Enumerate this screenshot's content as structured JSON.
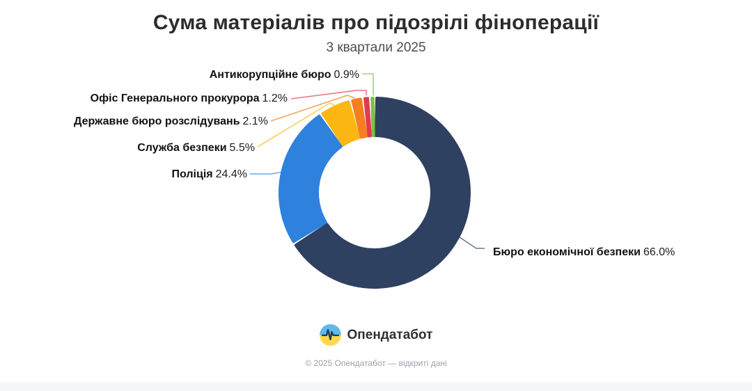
{
  "chart_data": {
    "type": "pie",
    "donut": true,
    "title": "Сума матеріалів про підозрілі фіноперації",
    "subtitle": "3 квартали 2025",
    "unit": "%",
    "order": "clockwise-from-12-oclock",
    "legend": "callout labels with leader lines",
    "background": "#ffffff",
    "slices": [
      {
        "name": "Бюро економічної безпеки",
        "value": 66.0,
        "pct_label": "66.0%",
        "color": "#2f4160"
      },
      {
        "name": "Поліція",
        "value": 24.4,
        "pct_label": "24.4%",
        "color": "#2e82dd"
      },
      {
        "name": "Служба безпеки",
        "value": 5.5,
        "pct_label": "5.5%",
        "color": "#fcb713"
      },
      {
        "name": "Державне бюро розслідувань",
        "value": 2.1,
        "pct_label": "2.1%",
        "color": "#f57e20"
      },
      {
        "name": "Офіс Генерального прокурора",
        "value": 1.2,
        "pct_label": "1.2%",
        "color": "#e23a4e"
      },
      {
        "name": "Антикорупційне бюро",
        "value": 0.9,
        "pct_label": "0.9%",
        "color": "#7ac143"
      }
    ]
  },
  "logo": {
    "text": "Опендатабот",
    "icon_colors": {
      "top": "#5fb8ea",
      "bottom": "#ffd84d",
      "pulse": "#263852"
    }
  },
  "footer": {
    "copyright": "© 2025 Опендатабот — відкриті дані"
  }
}
